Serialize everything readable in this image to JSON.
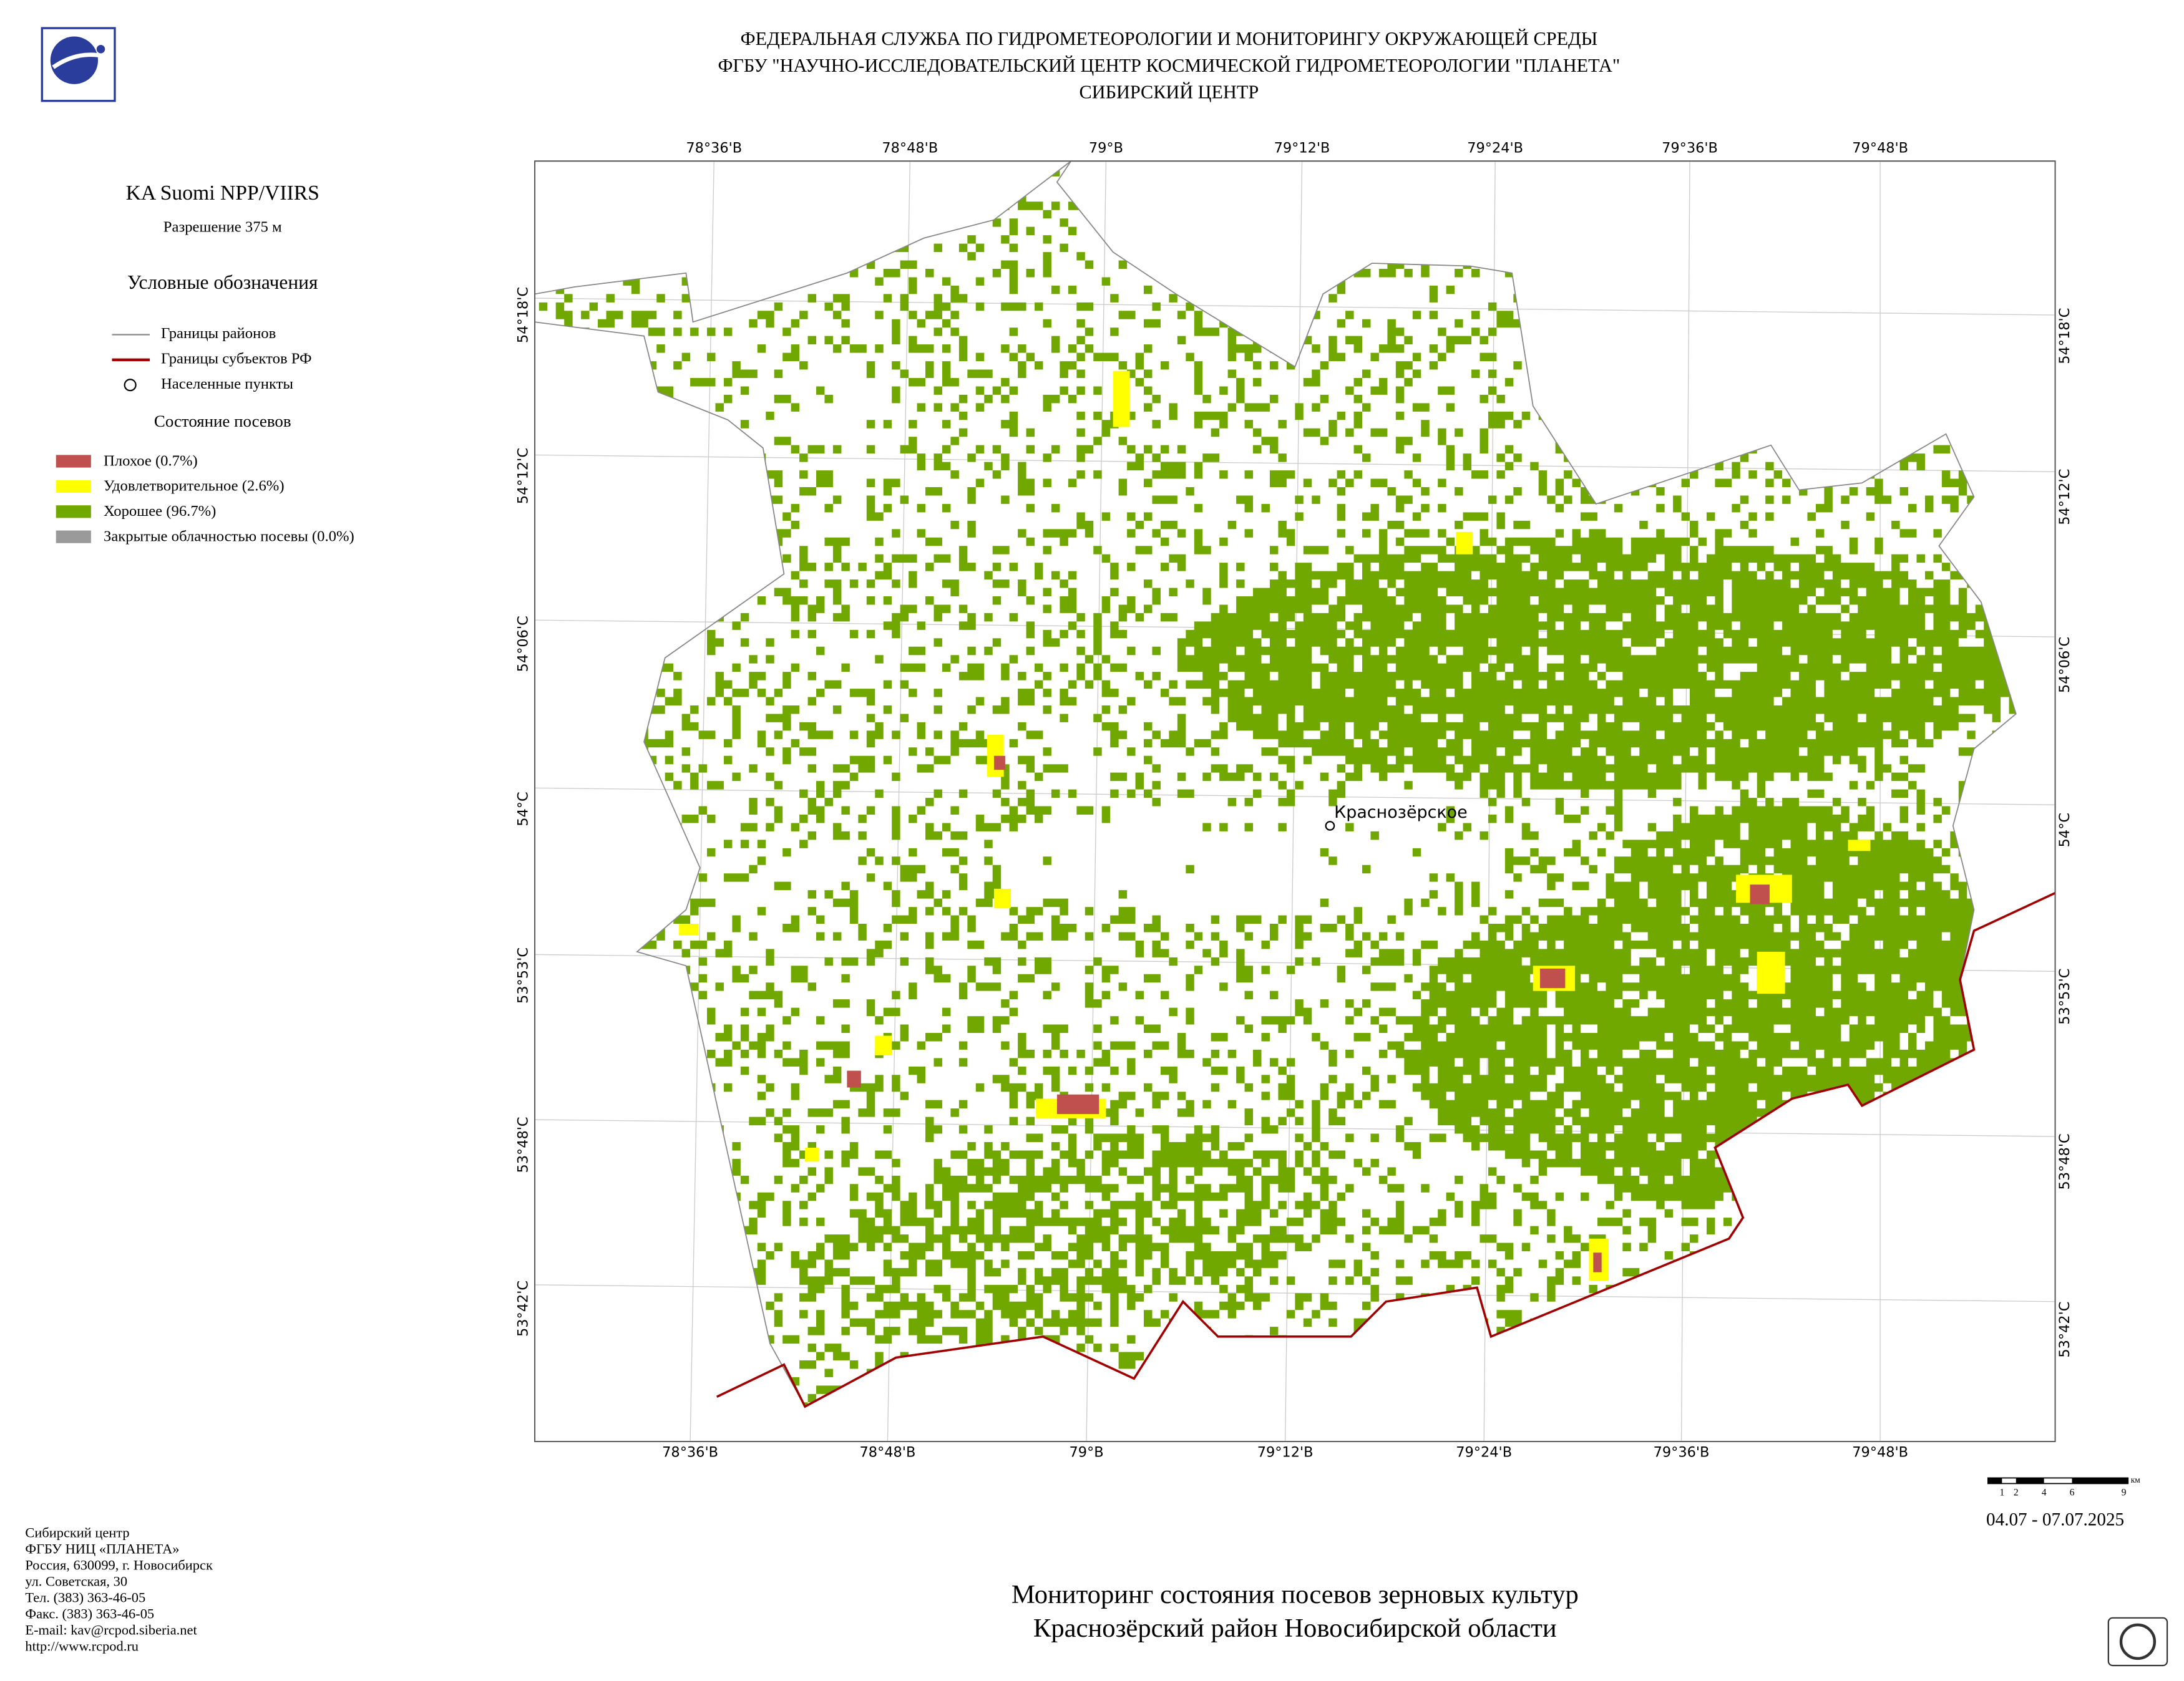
{
  "header": {
    "lines": [
      "ФЕДЕРАЛЬНАЯ СЛУЖБА ПО ГИДРОМЕТЕОРОЛОГИИ И МОНИТОРИНГУ ОКРУЖАЮЩЕЙ СРЕДЫ",
      "ФГБУ \"НАУЧНО-ИССЛЕДОВАТЕЛЬСКИЙ ЦЕНТР КОСМИЧЕСКОЙ ГИДРОМЕТЕОРОЛОГИИ \"ПЛАНЕТА\"",
      "СИБИРСКИЙ ЦЕНТР"
    ]
  },
  "legend": {
    "satellite": "KA Suomi NPP/VIIRS",
    "resolution": "Разрешение 375 м",
    "title": "Условные обозначения",
    "items": [
      "Границы районов",
      "Границы субъектов РФ",
      "Населенные пункты"
    ],
    "crop_title": "Состояние посевов",
    "crop_items": [
      "Плохое (0.7%)",
      "Удовлетворительное (2.6%)",
      "Хорошее (96.7%)",
      "Закрытые облачностью посевы (0.0%)"
    ]
  },
  "map": {
    "lon_top": [
      "78°36'В",
      "78°48'В",
      "79°В",
      "79°12'В",
      "79°24'В",
      "79°36'В",
      "79°48'В"
    ],
    "lon_bottom": [
      "78°36'В",
      "78°48'В",
      "79°В",
      "79°12'В",
      "79°24'В",
      "79°36'В",
      "79°48'В"
    ],
    "lat_left": [
      "54°18'С",
      "54°12'С",
      "54°06'С",
      "54°С",
      "53°53'С",
      "53°48'С",
      "53°42'С"
    ],
    "lat_right": [
      "54°18'С",
      "54°12'С",
      "54°06'С",
      "54°С",
      "53°53'С",
      "53°48'С",
      "53°42'С"
    ],
    "settlement": "Краснозёрское"
  },
  "scale": {
    "labels": [
      "1",
      "2",
      "4",
      "6",
      "9"
    ],
    "unit": "км"
  },
  "date": "04.07 - 07.07.2025",
  "footer": [
    "Сибирский центр",
    "ФГБУ НИЦ «ПЛАНЕТА»",
    "Россия, 630099, г. Новосибирск",
    "ул. Советская, 30",
    "Тел. (383) 363-46-05",
    "Факс. (383) 363-46-05",
    "E-mail: kav@rcpod.siberia.net",
    "http://www.rcpod.ru"
  ],
  "title": [
    "Мониторинг состояния посевов зерновых культур",
    "Краснозёрский район Новосибирской области"
  ]
}
